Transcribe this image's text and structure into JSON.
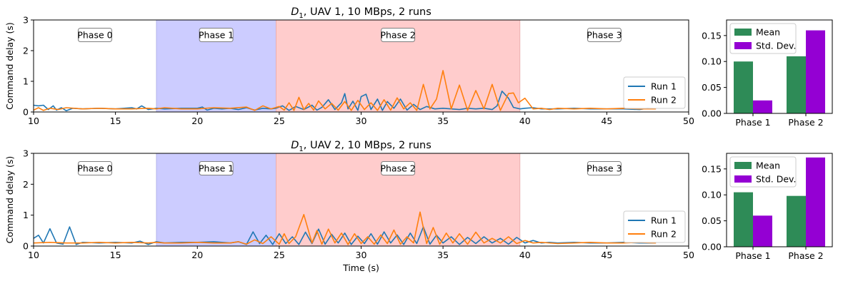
{
  "chart_data": [
    {
      "type": "line",
      "title_main": "D",
      "title_sub": "1",
      "title_rest": ", UAV 1, 10 MBps, 2 runs",
      "xlabel": "",
      "ylabel": "Command delay (s)",
      "xlim": [
        10,
        50
      ],
      "ylim": [
        0,
        3
      ],
      "xticks": [
        "10",
        "15",
        "20",
        "25",
        "30",
        "35",
        "40",
        "45",
        "50"
      ],
      "yticks": [
        "0",
        "1",
        "2",
        "3"
      ],
      "phases": [
        {
          "label": "Phase 0",
          "start": 10,
          "end": 17.5,
          "color": "#ffffff"
        },
        {
          "label": "Phase 1",
          "start": 17.5,
          "end": 24.8,
          "color": "#ccccff"
        },
        {
          "label": "Phase 2",
          "start": 24.8,
          "end": 39.7,
          "color": "#ffcccc"
        },
        {
          "label": "Phase 3",
          "start": 39.7,
          "end": 50,
          "color": "#ffffff"
        }
      ],
      "legend_position": "lower-right",
      "series": [
        {
          "name": "Run 1",
          "color": "#1f77b4",
          "x": [
            10,
            10.3,
            10.6,
            10.9,
            11.2,
            11.4,
            11.7,
            12,
            12.4,
            13,
            14,
            15,
            16,
            16.3,
            16.6,
            17,
            17.5,
            18,
            19,
            20,
            20.3,
            20.6,
            21,
            21.5,
            22,
            22.5,
            23,
            23.5,
            24,
            24.5,
            24.8,
            25.2,
            25.6,
            26,
            26.5,
            27,
            27.3,
            27.6,
            28,
            28.4,
            28.8,
            29,
            29.2,
            29.5,
            29.8,
            30,
            30.3,
            30.6,
            31,
            31.3,
            31.6,
            32,
            32.4,
            32.8,
            33.2,
            33.6,
            34,
            34.5,
            35,
            35.5,
            36,
            36.5,
            37,
            37.5,
            38,
            38.3,
            38.6,
            39,
            39.3,
            39.7,
            40,
            40.5,
            41,
            42,
            43,
            44,
            45,
            46,
            47,
            47.5,
            48
          ],
          "y": [
            0.22,
            0.2,
            0.22,
            0.08,
            0.2,
            0.06,
            0.14,
            0.04,
            0.12,
            0.1,
            0.12,
            0.1,
            0.14,
            0.1,
            0.2,
            0.08,
            0.12,
            0.1,
            0.12,
            0.12,
            0.16,
            0.06,
            0.12,
            0.1,
            0.12,
            0.08,
            0.14,
            0.06,
            0.12,
            0.1,
            0.12,
            0.2,
            0.05,
            0.18,
            0.08,
            0.22,
            0.06,
            0.15,
            0.4,
            0.08,
            0.3,
            0.6,
            0.1,
            0.35,
            0.05,
            0.5,
            0.58,
            0.08,
            0.42,
            0.05,
            0.34,
            0.12,
            0.42,
            0.06,
            0.25,
            0.08,
            0.18,
            0.1,
            0.12,
            0.1,
            0.08,
            0.12,
            0.1,
            0.12,
            0.08,
            0.2,
            0.68,
            0.45,
            0.15,
            0.1,
            0.12,
            0.14,
            0.1,
            0.1,
            0.12,
            0.1,
            0.1,
            0.1,
            0.08,
            0.12,
            0.1
          ]
        },
        {
          "name": "Run 2",
          "color": "#ff7f0e",
          "x": [
            10,
            10.3,
            10.6,
            11,
            11.5,
            12,
            13,
            14,
            15,
            16,
            17,
            17.5,
            18,
            19,
            20,
            21,
            22,
            23,
            23.5,
            24,
            24.5,
            25,
            25.3,
            25.6,
            25.9,
            26.2,
            26.5,
            26.8,
            27.1,
            27.4,
            27.8,
            28.2,
            28.6,
            29,
            29.4,
            29.8,
            30.2,
            30.6,
            31,
            31.4,
            31.8,
            32.2,
            32.6,
            33,
            33.4,
            33.8,
            34.2,
            34.6,
            35,
            35.5,
            36,
            36.5,
            37,
            37.5,
            38,
            38.5,
            39,
            39.3,
            39.6,
            40,
            40.5,
            41,
            41.5,
            42,
            43,
            44,
            45,
            46,
            47,
            48
          ],
          "y": [
            0.06,
            0.14,
            0.05,
            0.12,
            0.08,
            0.14,
            0.1,
            0.12,
            0.1,
            0.1,
            0.12,
            0.1,
            0.14,
            0.1,
            0.1,
            0.14,
            0.12,
            0.16,
            0.05,
            0.2,
            0.1,
            0.18,
            0.06,
            0.3,
            0.05,
            0.48,
            0.08,
            0.28,
            0.06,
            0.36,
            0.1,
            0.28,
            0.06,
            0.34,
            0.05,
            0.38,
            0.08,
            0.3,
            0.05,
            0.4,
            0.06,
            0.46,
            0.1,
            0.3,
            0.05,
            0.9,
            0.1,
            0.42,
            1.35,
            0.1,
            0.88,
            0.05,
            0.7,
            0.1,
            0.9,
            0.05,
            0.6,
            0.62,
            0.3,
            0.45,
            0.1,
            0.12,
            0.08,
            0.12,
            0.1,
            0.12,
            0.1,
            0.12,
            0.1,
            0.1
          ]
        }
      ],
      "side_bar": {
        "type": "bar",
        "categories": [
          "Phase 1",
          "Phase 2"
        ],
        "ylim": [
          0,
          0.18
        ],
        "yticks": [
          "0.00",
          "0.05",
          "0.10",
          "0.15"
        ],
        "legend_position": "top-left",
        "series": [
          {
            "name": "Mean",
            "color": "#2e8b57",
            "values": [
              0.1,
              0.11
            ]
          },
          {
            "name": "Std. Dev.",
            "color": "#9400d3",
            "values": [
              0.025,
              0.16
            ]
          }
        ]
      }
    },
    {
      "type": "line",
      "title_main": "D",
      "title_sub": "1",
      "title_rest": ", UAV 2, 10 MBps, 2 runs",
      "xlabel": "Time (s)",
      "ylabel": "Command delay (s)",
      "xlim": [
        10,
        50
      ],
      "ylim": [
        0,
        3
      ],
      "xticks": [
        "10",
        "15",
        "20",
        "25",
        "30",
        "35",
        "40",
        "45",
        "50"
      ],
      "yticks": [
        "0",
        "1",
        "2",
        "3"
      ],
      "phases": [
        {
          "label": "Phase 0",
          "start": 10,
          "end": 17.5,
          "color": "#ffffff"
        },
        {
          "label": "Phase 1",
          "start": 17.5,
          "end": 24.8,
          "color": "#ccccff"
        },
        {
          "label": "Phase 2",
          "start": 24.8,
          "end": 39.7,
          "color": "#ffcccc"
        },
        {
          "label": "Phase 3",
          "start": 39.7,
          "end": 50,
          "color": "#ffffff"
        }
      ],
      "legend_position": "lower-right",
      "series": [
        {
          "name": "Run 1",
          "color": "#1f77b4",
          "x": [
            10,
            10.3,
            10.6,
            11,
            11.4,
            11.8,
            12.2,
            12.6,
            13,
            14,
            15,
            16,
            16.5,
            17,
            17.5,
            18,
            19,
            20,
            21,
            22,
            22.5,
            23,
            23.4,
            23.8,
            24.2,
            24.6,
            25,
            25.4,
            25.8,
            26.2,
            26.6,
            27,
            27.4,
            27.8,
            28.2,
            28.6,
            29,
            29.4,
            29.8,
            30.2,
            30.6,
            31,
            31.4,
            31.8,
            32.2,
            32.6,
            33,
            33.4,
            33.8,
            34.2,
            34.6,
            35,
            35.5,
            36,
            36.5,
            37,
            37.5,
            38,
            38.5,
            39,
            39.5,
            40,
            40.5,
            41,
            41.5,
            42,
            43,
            44,
            45,
            46,
            47,
            48
          ],
          "y": [
            0.25,
            0.35,
            0.1,
            0.56,
            0.1,
            0.06,
            0.62,
            0.05,
            0.12,
            0.1,
            0.12,
            0.1,
            0.16,
            0.05,
            0.14,
            0.1,
            0.12,
            0.12,
            0.14,
            0.1,
            0.14,
            0.05,
            0.46,
            0.08,
            0.35,
            0.05,
            0.4,
            0.08,
            0.3,
            0.05,
            0.45,
            0.08,
            0.55,
            0.06,
            0.38,
            0.1,
            0.42,
            0.05,
            0.32,
            0.08,
            0.4,
            0.06,
            0.46,
            0.1,
            0.36,
            0.05,
            0.42,
            0.08,
            0.62,
            0.06,
            0.35,
            0.1,
            0.3,
            0.05,
            0.28,
            0.08,
            0.3,
            0.1,
            0.25,
            0.06,
            0.28,
            0.1,
            0.18,
            0.1,
            0.12,
            0.1,
            0.12,
            0.1,
            0.1,
            0.12,
            0.1,
            0.1
          ]
        },
        {
          "name": "Run 2",
          "color": "#ff7f0e",
          "x": [
            10,
            11,
            12,
            13,
            14,
            15,
            16,
            17,
            17.5,
            18,
            19,
            20,
            21,
            22,
            22.5,
            23,
            23.5,
            24,
            24.5,
            25,
            25.3,
            25.6,
            26,
            26.5,
            27,
            27.3,
            27.6,
            28,
            28.4,
            28.8,
            29.2,
            29.6,
            30,
            30.4,
            30.8,
            31.2,
            31.6,
            32,
            32.4,
            32.8,
            33.2,
            33.6,
            34,
            34.4,
            34.8,
            35.2,
            35.6,
            36,
            36.5,
            37,
            37.5,
            38,
            38.5,
            39,
            39.5,
            40,
            40.5,
            41,
            42,
            43,
            44,
            45,
            46,
            47,
            48
          ],
          "y": [
            0.1,
            0.12,
            0.1,
            0.1,
            0.12,
            0.1,
            0.12,
            0.1,
            0.12,
            0.1,
            0.1,
            0.12,
            0.1,
            0.1,
            0.14,
            0.06,
            0.2,
            0.08,
            0.3,
            0.06,
            0.4,
            0.08,
            0.3,
            1.02,
            0.1,
            0.5,
            0.06,
            0.55,
            0.1,
            0.42,
            0.05,
            0.4,
            0.08,
            0.3,
            0.06,
            0.36,
            0.08,
            0.52,
            0.06,
            0.3,
            0.1,
            1.1,
            0.08,
            0.6,
            0.06,
            0.42,
            0.1,
            0.4,
            0.06,
            0.45,
            0.1,
            0.25,
            0.1,
            0.3,
            0.08,
            0.18,
            0.1,
            0.12,
            0.08,
            0.1,
            0.12,
            0.1,
            0.1,
            0.12,
            0.1
          ]
        }
      ],
      "side_bar": {
        "type": "bar",
        "categories": [
          "Phase 1",
          "Phase 2"
        ],
        "ylim": [
          0,
          0.18
        ],
        "yticks": [
          "0.00",
          "0.05",
          "0.10",
          "0.15"
        ],
        "legend_position": "top-left",
        "series": [
          {
            "name": "Mean",
            "color": "#2e8b57",
            "values": [
              0.105,
              0.098
            ]
          },
          {
            "name": "Std. Dev.",
            "color": "#9400d3",
            "values": [
              0.06,
              0.172
            ]
          }
        ]
      }
    }
  ]
}
